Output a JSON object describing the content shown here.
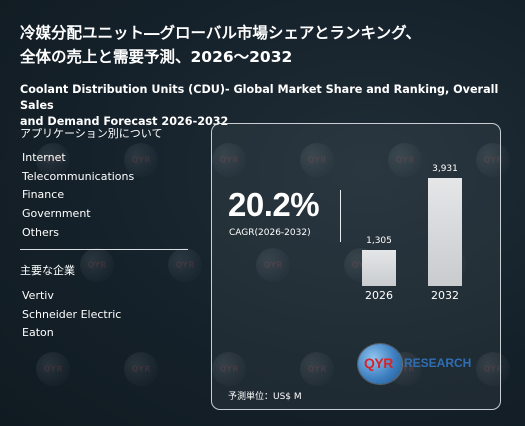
{
  "title_jp_line1": "冷媒分配ユニット―グローバル市場シェアとランキング、",
  "title_jp_line2": "全体の売上と需要予測、2026～2032",
  "title_en_line1": "Coolant Distribution Units (CDU)- Global Market Share and Ranking, Overall Sales",
  "title_en_line2": "and Demand Forecast 2026-2032",
  "applications": {
    "heading": "アプリケーション別について",
    "items": [
      "Internet",
      "Telecommunications",
      "Finance",
      "Government",
      "Others"
    ]
  },
  "companies": {
    "heading": "主要な企業",
    "items": [
      "Vertiv",
      "Schneider Electric",
      "Eaton"
    ]
  },
  "cagr": {
    "value": "20.2%",
    "label": "CAGR(2026-2032)"
  },
  "chart_data": {
    "type": "bar",
    "categories": [
      "2026",
      "2032"
    ],
    "values": [
      1305,
      3931
    ],
    "value_labels": [
      "1,305",
      "3,931"
    ],
    "unit_note": "予測単位：US$ M"
  },
  "logo": {
    "mark": "QYR",
    "word": "RESEARCH"
  },
  "colors": {
    "background": "#15212a",
    "bar": "#d6d8da",
    "logo_red": "#d8232a",
    "logo_blue": "#2f6eb4"
  }
}
